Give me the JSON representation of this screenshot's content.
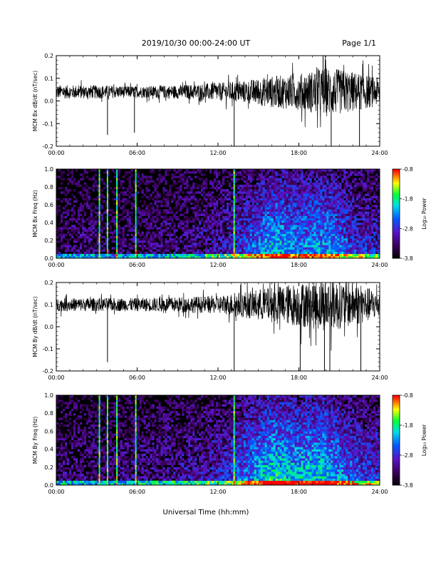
{
  "header": {
    "date_range": "2019/10/30  00:00-24:00 UT",
    "page": "Page 1/1"
  },
  "xlabel": "Universal Time (hh:mm)",
  "chart_data": [
    {
      "type": "line",
      "name": "bx-derivative",
      "ylabel": "MCM Bx dB/dt (nT/sec)",
      "ylim": [
        -0.2,
        0.2
      ],
      "yticks": [
        "0.2",
        "0.1",
        "0.0",
        "-0.1",
        "-0.2"
      ],
      "xticks": [
        "00:00",
        "06:00",
        "12:00",
        "18:00",
        "24:00"
      ],
      "xlim_hours": [
        0,
        24
      ],
      "baseline": 0.04,
      "envelope": {
        "hours": [
          0,
          3,
          6,
          9,
          12,
          14,
          16,
          18,
          20,
          22,
          24
        ],
        "half_width": [
          0.03,
          0.03,
          0.025,
          0.03,
          0.04,
          0.05,
          0.07,
          0.08,
          0.11,
          0.09,
          0.06
        ]
      },
      "spikes": [
        {
          "hour": 3.8,
          "y": -0.15
        },
        {
          "hour": 5.8,
          "y": -0.14
        },
        {
          "hour": 13.2,
          "y": -0.2
        },
        {
          "hour": 19.8,
          "y": 0.2
        },
        {
          "hour": 20.4,
          "y": -0.2
        },
        {
          "hour": 22.5,
          "y": -0.2
        }
      ]
    },
    {
      "type": "heatmap",
      "name": "bx-spectrogram",
      "ylabel": "MCM Bx Freq (Hz)",
      "ylim": [
        0,
        1.0
      ],
      "yticks": [
        "1.0",
        "0.8",
        "0.6",
        "0.4",
        "0.2",
        "0.0"
      ],
      "xticks": [
        "00:00",
        "06:00",
        "12:00",
        "18:00",
        "24:00"
      ],
      "colorbar": {
        "label": "Log₁₀ Power",
        "ticks": [
          "-0.8",
          "-1.8",
          "-2.8",
          "-3.8"
        ],
        "range": [
          -3.8,
          -0.8
        ]
      },
      "bright_lines_hours": [
        3.2,
        3.8,
        4.5,
        5.9,
        13.2
      ],
      "activity": {
        "hours": [
          0,
          2,
          4,
          6,
          8,
          10,
          12,
          14,
          16,
          18,
          20,
          22,
          24
        ],
        "level": [
          0.15,
          0.2,
          0.15,
          0.2,
          0.2,
          0.25,
          0.3,
          0.45,
          0.7,
          0.6,
          0.65,
          0.45,
          0.35
        ]
      }
    },
    {
      "type": "line",
      "name": "by-derivative",
      "ylabel": "MCM By dB/dt (nT/sec)",
      "ylim": [
        -0.2,
        0.2
      ],
      "yticks": [
        "0.2",
        "0.1",
        "0.0",
        "-0.1",
        "-0.2"
      ],
      "xticks": [
        "00:00",
        "06:00",
        "12:00",
        "18:00",
        "24:00"
      ],
      "xlim_hours": [
        0,
        24
      ],
      "baseline": 0.1,
      "envelope": {
        "hours": [
          0,
          3,
          6,
          9,
          12,
          14,
          16,
          18,
          20,
          22,
          24
        ],
        "half_width": [
          0.03,
          0.03,
          0.03,
          0.035,
          0.04,
          0.06,
          0.08,
          0.1,
          0.12,
          0.1,
          0.06
        ]
      },
      "spikes": [
        {
          "hour": 3.8,
          "y": -0.16
        },
        {
          "hour": 13.2,
          "y": -0.2
        },
        {
          "hour": 18.1,
          "y": -0.2
        },
        {
          "hour": 19.9,
          "y": -0.2
        },
        {
          "hour": 20.3,
          "y": -0.2
        },
        {
          "hour": 22.6,
          "y": -0.2
        }
      ]
    },
    {
      "type": "heatmap",
      "name": "by-spectrogram",
      "ylabel": "MCM By Freq (Hz)",
      "ylim": [
        0,
        1.0
      ],
      "yticks": [
        "1.0",
        "0.8",
        "0.6",
        "0.4",
        "0.2",
        "0.0"
      ],
      "xticks": [
        "00:00",
        "06:00",
        "12:00",
        "18:00",
        "24:00"
      ],
      "colorbar": {
        "label": "Log₁₀ Power",
        "ticks": [
          "-0.8",
          "-1.8",
          "-2.8",
          "-3.8"
        ],
        "range": [
          -3.8,
          -0.8
        ]
      },
      "bright_lines_hours": [
        3.2,
        3.8,
        4.5,
        5.9,
        13.2
      ],
      "activity": {
        "hours": [
          0,
          2,
          4,
          6,
          8,
          10,
          12,
          14,
          16,
          18,
          20,
          22,
          24
        ],
        "level": [
          0.2,
          0.2,
          0.2,
          0.25,
          0.25,
          0.3,
          0.35,
          0.55,
          0.8,
          0.7,
          0.75,
          0.5,
          0.4
        ]
      }
    }
  ]
}
